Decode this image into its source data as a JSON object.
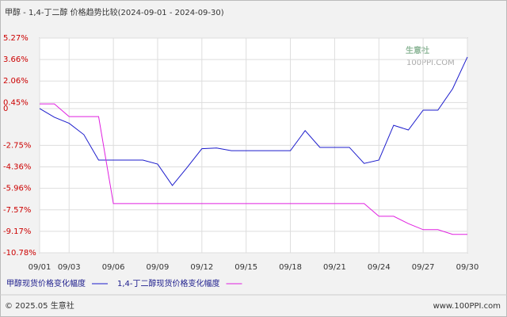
{
  "chart_data": {
    "type": "line",
    "title": "甲醇 - 1,4-丁二醇 价格趋势比较(2024-09-01 - 2024-09-30)",
    "categories": [
      "09/01",
      null,
      "09/03",
      null,
      null,
      "09/06",
      null,
      null,
      "09/09",
      null,
      null,
      "09/12",
      null,
      null,
      "09/15",
      null,
      null,
      "09/18",
      null,
      null,
      "09/21",
      null,
      null,
      "09/24",
      null,
      null,
      "09/27",
      null,
      null,
      "09/30"
    ],
    "series": [
      {
        "name": "甲醇现货价格变化幅度",
        "color": "#1c1ccc",
        "values": [
          0,
          -0.65,
          -1.1,
          -1.95,
          -3.85,
          -3.85,
          -3.85,
          -3.85,
          -4.15,
          -5.75,
          -4.4,
          -3.0,
          -2.95,
          -3.15,
          -3.15,
          -3.15,
          -3.15,
          -3.15,
          -1.65,
          -2.9,
          -2.9,
          -2.9,
          -4.1,
          -3.85,
          -1.25,
          -1.6,
          -0.12,
          -0.12,
          1.48,
          3.85
        ]
      },
      {
        "name": "1,4-丁二醇现货价格变化幅度",
        "color": "#e020e0",
        "values": [
          0.35,
          0.35,
          -0.6,
          -0.6,
          -0.6,
          -7.1,
          -7.1,
          -7.1,
          -7.1,
          -7.1,
          -7.1,
          -7.1,
          -7.1,
          -7.1,
          -7.1,
          -7.1,
          -7.1,
          -7.1,
          -7.1,
          -7.1,
          -7.1,
          -7.1,
          -7.1,
          -8.05,
          -8.05,
          -8.6,
          -9.05,
          -9.05,
          -9.4,
          -9.4
        ]
      }
    ],
    "ylim": [
      -10.78,
      5.27
    ],
    "yticks": [
      {
        "value": 5.27,
        "label": "5.27%"
      },
      {
        "value": 3.66,
        "label": "3.66%"
      },
      {
        "value": 2.06,
        "label": "2.06%"
      },
      {
        "value": 0.45,
        "label": "0.45%"
      },
      0,
      {
        "value": -2.75,
        "label": "-2.75%"
      },
      {
        "value": -4.36,
        "label": "-4.36%"
      },
      {
        "value": -5.96,
        "label": "-5.96%"
      },
      {
        "value": -7.57,
        "label": "-7.57%"
      },
      {
        "value": -9.17,
        "label": "-9.17%"
      },
      {
        "value": -10.78,
        "label": "-10.78%"
      }
    ],
    "grid": true,
    "watermark": {
      "name": "生意社",
      "site": "100PPI.COM"
    },
    "footer": {
      "copyright": "© 2025.05 生意社",
      "url": "www.100PPI.com"
    }
  }
}
